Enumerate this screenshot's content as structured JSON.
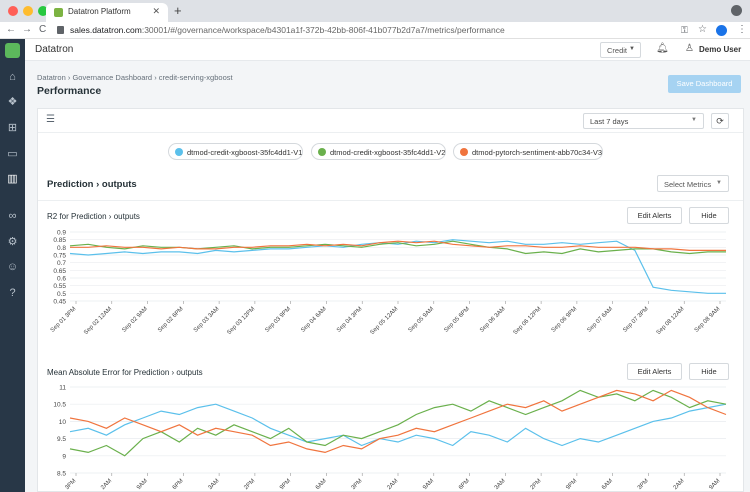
{
  "browser": {
    "tab_title": "Datatron Platform",
    "tab_close": "✕",
    "new_tab": "+",
    "url_host": "sales.datatron.com",
    "url_rest": ":30001/#/governance/workspace/b4301a1f-372b-42bb-806f-41b077b2d7a7/metrics/performance",
    "back": "←",
    "forward": "→",
    "reload": "C",
    "kebab": "⋮"
  },
  "header": {
    "brand": "Datatron",
    "credit_label": "Credit",
    "user_name": "Demo User"
  },
  "page": {
    "breadcrumb": [
      "Datatron",
      "Governance Dashboard",
      "credit-serving-xgboost"
    ],
    "breadcrumb_sep": "›",
    "title": "Performance",
    "save_label": "Save Dashboard"
  },
  "toolbar": {
    "range": "Last 7 days",
    "refresh": "⟳"
  },
  "models": [
    {
      "label": "dtmod-credit-xgboost-35fc4dd1-V1",
      "color": "#5bc0eb"
    },
    {
      "label": "dtmod-credit-xgboost-35fc4dd1-V2",
      "color": "#6ab04c"
    },
    {
      "label": "dtmod-pytorch-sentiment-abb70c34-V3",
      "color": "#f0743e"
    }
  ],
  "section": {
    "title": "Prediction › outputs",
    "select_metrics": "Select Metrics"
  },
  "chart_buttons": {
    "edit": "Edit Alerts",
    "hide": "Hide"
  },
  "chart_data": [
    {
      "type": "line",
      "title": "R2 for Prediction › outputs",
      "xlabel": "",
      "ylabel": "",
      "ylim": [
        0.45,
        0.9
      ],
      "yticks": [
        0.9,
        0.85,
        0.8,
        0.75,
        0.7,
        0.65,
        0.6,
        0.55,
        0.5,
        0.45
      ],
      "x_ticks": [
        "Sep 01 3PM",
        "Sep 02 12AM",
        "Sep 02 9AM",
        "Sep 02 6PM",
        "Sep 03 3AM",
        "Sep 03 12PM",
        "Sep 03 9PM",
        "Sep 04 6AM",
        "Sep 04 3PM",
        "Sep 05 12AM",
        "Sep 05 9AM",
        "Sep 05 6PM",
        "Sep 06 3AM",
        "Sep 06 12PM",
        "Sep 06 9PM",
        "Sep 07 6AM",
        "Sep 07 3PM",
        "Sep 08 12AM",
        "Sep 08 9AM"
      ],
      "grid": true,
      "x_index": [
        0,
        1,
        2,
        3,
        4,
        5,
        6,
        7,
        8,
        9,
        10,
        11,
        12,
        13,
        14,
        15,
        16,
        17,
        18,
        19,
        20,
        21,
        22,
        23,
        24,
        25,
        26,
        27,
        28,
        29,
        30,
        31,
        32,
        33,
        34,
        35,
        36
      ],
      "series": [
        {
          "name": "dtmod-credit-xgboost-35fc4dd1-V1",
          "color": "#5bc0eb",
          "values": [
            0.76,
            0.75,
            0.76,
            0.77,
            0.76,
            0.77,
            0.77,
            0.76,
            0.78,
            0.77,
            0.78,
            0.79,
            0.79,
            0.8,
            0.81,
            0.8,
            0.82,
            0.83,
            0.82,
            0.84,
            0.83,
            0.85,
            0.84,
            0.83,
            0.84,
            0.82,
            0.82,
            0.83,
            0.82,
            0.83,
            0.84,
            0.78,
            0.54,
            0.52,
            0.51,
            0.5,
            0.5
          ]
        },
        {
          "name": "dtmod-credit-xgboost-35fc4dd1-V2",
          "color": "#6ab04c",
          "values": [
            0.81,
            0.82,
            0.8,
            0.79,
            0.81,
            0.8,
            0.8,
            0.79,
            0.8,
            0.81,
            0.79,
            0.8,
            0.8,
            0.81,
            0.82,
            0.81,
            0.8,
            0.82,
            0.83,
            0.81,
            0.82,
            0.84,
            0.82,
            0.8,
            0.79,
            0.76,
            0.77,
            0.76,
            0.79,
            0.77,
            0.78,
            0.79,
            0.79,
            0.77,
            0.76,
            0.77,
            0.77
          ]
        },
        {
          "name": "dtmod-pytorch-sentiment-abb70c34-V3",
          "color": "#f0743e",
          "values": [
            0.8,
            0.8,
            0.81,
            0.8,
            0.8,
            0.79,
            0.8,
            0.79,
            0.79,
            0.8,
            0.8,
            0.81,
            0.81,
            0.82,
            0.81,
            0.82,
            0.81,
            0.83,
            0.84,
            0.83,
            0.84,
            0.82,
            0.81,
            0.8,
            0.81,
            0.81,
            0.8,
            0.8,
            0.81,
            0.8,
            0.8,
            0.8,
            0.79,
            0.79,
            0.78,
            0.78,
            0.78
          ]
        }
      ]
    },
    {
      "type": "line",
      "title": "Mean Absolute Error for Prediction › outputs",
      "xlabel": "",
      "ylabel": "",
      "ylim": [
        8.5,
        11
      ],
      "yticks": [
        11,
        10.5,
        10,
        9.5,
        9,
        8.5
      ],
      "x_ticks": [
        "3PM",
        "2AM",
        "9AM",
        "6PM",
        "3AM",
        "2PM",
        "9PM",
        "6AM",
        "3PM",
        "2AM",
        "9AM",
        "6PM",
        "3AM",
        "2PM",
        "9PM",
        "6AM",
        "3PM",
        "2AM",
        "9AM"
      ],
      "grid": true,
      "x_index": [
        0,
        1,
        2,
        3,
        4,
        5,
        6,
        7,
        8,
        9,
        10,
        11,
        12,
        13,
        14,
        15,
        16,
        17,
        18,
        19,
        20,
        21,
        22,
        23,
        24,
        25,
        26,
        27,
        28,
        29,
        30,
        31,
        32,
        33,
        34,
        35,
        36
      ],
      "series": [
        {
          "name": "dtmod-credit-xgboost-35fc4dd1-V1",
          "color": "#5bc0eb",
          "values": [
            9.7,
            9.8,
            9.6,
            9.9,
            10.1,
            10.3,
            10.2,
            10.4,
            10.5,
            10.3,
            10.1,
            9.8,
            9.6,
            9.4,
            9.5,
            9.6,
            9.3,
            9.5,
            9.4,
            9.6,
            9.5,
            9.3,
            9.7,
            9.6,
            9.4,
            9.8,
            9.5,
            9.3,
            9.5,
            9.4,
            9.6,
            9.8,
            10.0,
            10.1,
            10.3,
            10.4,
            10.5
          ]
        },
        {
          "name": "dtmod-credit-xgboost-35fc4dd1-V2",
          "color": "#6ab04c",
          "values": [
            9.2,
            9.1,
            9.3,
            9.0,
            9.5,
            9.7,
            9.4,
            9.8,
            9.6,
            9.9,
            9.7,
            9.5,
            9.8,
            9.4,
            9.3,
            9.6,
            9.5,
            9.7,
            9.9,
            10.2,
            10.4,
            10.5,
            10.3,
            10.6,
            10.4,
            10.2,
            10.4,
            10.6,
            10.9,
            10.7,
            10.8,
            10.6,
            10.9,
            10.7,
            10.4,
            10.6,
            10.5
          ]
        },
        {
          "name": "dtmod-pytorch-sentiment-abb70c34-V3",
          "color": "#f0743e",
          "values": [
            10.1,
            10.0,
            9.8,
            10.1,
            9.9,
            9.7,
            9.9,
            9.6,
            9.8,
            9.7,
            9.6,
            9.3,
            9.4,
            9.2,
            9.1,
            9.3,
            9.2,
            9.5,
            9.6,
            9.8,
            9.7,
            9.9,
            10.1,
            10.3,
            10.5,
            10.4,
            10.6,
            10.3,
            10.5,
            10.7,
            10.9,
            10.8,
            10.6,
            10.9,
            10.7,
            10.4,
            10.2
          ]
        }
      ]
    }
  ]
}
